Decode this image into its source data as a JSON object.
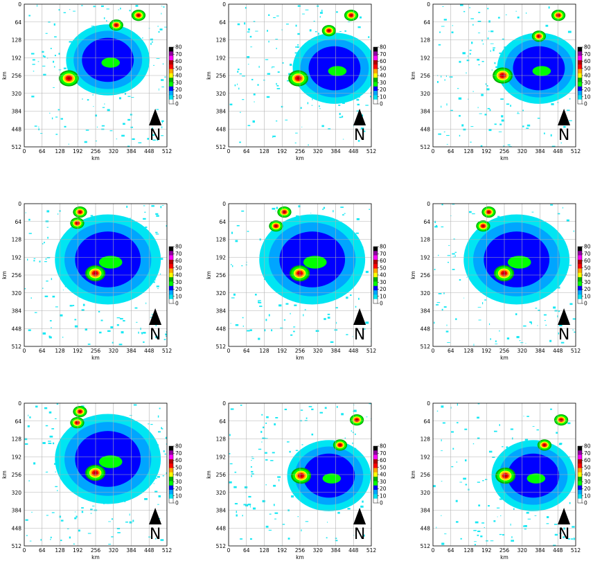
{
  "figure": {
    "rows": 3,
    "cols": 3,
    "axis_unit_label": "km",
    "axis_ticks": [
      "0",
      "64",
      "128",
      "192",
      "256",
      "320",
      "384",
      "448",
      "512"
    ],
    "colorbar": {
      "ticks": [
        "0",
        "10",
        "20",
        "30",
        "40",
        "50",
        "60",
        "70",
        "80"
      ],
      "colors": [
        "#ffffff",
        "#00e5f2",
        "#00a5ff",
        "#0000ff",
        "#00ff00",
        "#00b000",
        "#ffff00",
        "#ffa500",
        "#ff0000",
        "#b00000",
        "#ff00ff",
        "#9000a0",
        "#000000"
      ]
    },
    "north_arrow_label": "N"
  },
  "panels": [
    {
      "id": "r1c1",
      "core": [
        [
          160,
          266
        ],
        [
          300,
          190
        ],
        [
          210,
          150
        ]
      ],
      "cells": [
        [
          410,
          40
        ],
        [
          330,
          75
        ]
      ],
      "field": [
        [
          300,
          200,
          150
        ]
      ],
      "north": "N"
    },
    {
      "id": "r1c2",
      "core": [
        [
          250,
          266
        ],
        [
          390,
          200
        ],
        [
          300,
          140
        ]
      ],
      "cells": [
        [
          440,
          40
        ],
        [
          360,
          95
        ]
      ],
      "field": [
        [
          380,
          230,
          150
        ]
      ],
      "north": "N"
    },
    {
      "id": "r1c3",
      "core": [
        [
          250,
          256
        ],
        [
          400,
          210
        ],
        [
          300,
          150
        ]
      ],
      "cells": [
        [
          450,
          40
        ],
        [
          380,
          115
        ]
      ],
      "field": [
        [
          380,
          230,
          150
        ]
      ],
      "north": "N"
    },
    {
      "id": "r2c1",
      "core": [
        [
          255,
          250
        ],
        [
          330,
          180
        ],
        [
          220,
          180
        ]
      ],
      "cells": [
        [
          200,
          30
        ],
        [
          190,
          70
        ]
      ],
      "field": [
        [
          300,
          200,
          190
        ]
      ],
      "north": "N"
    },
    {
      "id": "r2c2",
      "core": [
        [
          255,
          250
        ],
        [
          330,
          180
        ],
        [
          230,
          180
        ]
      ],
      "cells": [
        [
          200,
          30
        ],
        [
          170,
          80
        ]
      ],
      "field": [
        [
          300,
          200,
          190
        ]
      ],
      "north": "N"
    },
    {
      "id": "r2c3",
      "core": [
        [
          255,
          250
        ],
        [
          330,
          180
        ],
        [
          230,
          180
        ]
      ],
      "cells": [
        [
          200,
          30
        ],
        [
          180,
          80
        ]
      ],
      "field": [
        [
          300,
          200,
          190
        ]
      ],
      "north": "N"
    },
    {
      "id": "r3c1",
      "core": [
        [
          255,
          250
        ],
        [
          330,
          180
        ],
        [
          230,
          180
        ]
      ],
      "cells": [
        [
          200,
          30
        ],
        [
          190,
          70
        ]
      ],
      "field": [
        [
          300,
          200,
          190
        ]
      ],
      "north": "N"
    },
    {
      "id": "r3c2",
      "core": [
        [
          260,
          260
        ],
        [
          390,
          220
        ],
        [
          260,
          150
        ]
      ],
      "cells": [
        [
          460,
          60
        ],
        [
          400,
          150
        ]
      ],
      "field": [
        [
          360,
          260,
          150
        ]
      ],
      "north": "N"
    },
    {
      "id": "r3c3",
      "core": [
        [
          260,
          260
        ],
        [
          390,
          220
        ],
        [
          260,
          150
        ]
      ],
      "cells": [
        [
          460,
          60
        ],
        [
          400,
          150
        ]
      ],
      "field": [
        [
          360,
          260,
          150
        ]
      ],
      "north": "N"
    }
  ]
}
